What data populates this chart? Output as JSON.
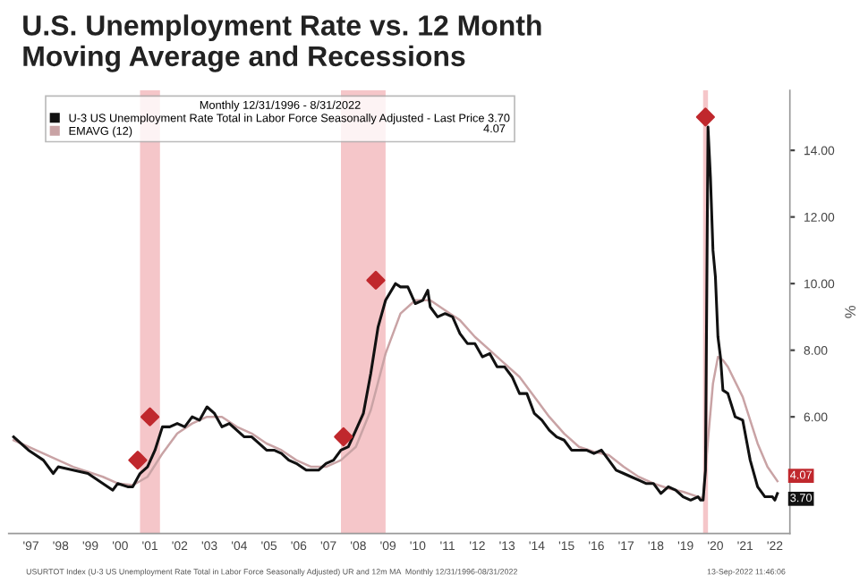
{
  "chart_data": {
    "type": "line",
    "title": "U.S. Unemployment Rate vs. 12 Month\nMoving Average and Recessions",
    "legend_title": "Monthly 12/31/1996 - 8/31/2022",
    "ylabel": "%",
    "annotations": [
      "USURTOT Index (U-3 US Unemployment Rate Total in Labor Force Seasonally Adjusted) UR and 12m MA  Monthly 12/31/1996-08/31/2022",
      "13-Sep-2022 11:46:06",
      "4.07",
      {
        "text": "4.07",
        "x": "2022-08",
        "y": 4.07
      },
      {
        "text": "3.70",
        "x": "2022-08",
        "y": 3.7
      }
    ],
    "series": [
      {
        "name": "U-3 US Unemployment Rate Total in Labor Force Seasonally Adjusted - Last Price 3.70",
        "color": "#111111",
        "x": [
          "1996-12",
          "1997-06",
          "1997-12",
          "1998-04",
          "1998-06",
          "1998-12",
          "1999-06",
          "1999-12",
          "2000-04",
          "2000-06",
          "2000-10",
          "2000-12",
          "2001-03",
          "2001-06",
          "2001-09",
          "2001-12",
          "2002-03",
          "2002-06",
          "2002-09",
          "2002-12",
          "2003-03",
          "2003-06",
          "2003-09",
          "2003-12",
          "2004-03",
          "2004-06",
          "2004-09",
          "2004-12",
          "2005-03",
          "2005-06",
          "2005-09",
          "2005-12",
          "2006-03",
          "2006-06",
          "2006-10",
          "2006-12",
          "2007-03",
          "2007-06",
          "2007-09",
          "2007-12",
          "2008-03",
          "2008-06",
          "2008-09",
          "2008-12",
          "2009-03",
          "2009-06",
          "2009-10",
          "2009-12",
          "2010-03",
          "2010-06",
          "2010-09",
          "2010-11",
          "2010-12",
          "2011-03",
          "2011-06",
          "2011-09",
          "2011-12",
          "2012-03",
          "2012-06",
          "2012-09",
          "2012-12",
          "2013-03",
          "2013-06",
          "2013-09",
          "2013-12",
          "2014-03",
          "2014-06",
          "2014-09",
          "2014-12",
          "2015-03",
          "2015-06",
          "2015-09",
          "2015-12",
          "2016-03",
          "2016-06",
          "2016-09",
          "2016-12",
          "2017-03",
          "2017-06",
          "2017-09",
          "2017-12",
          "2018-03",
          "2018-06",
          "2018-09",
          "2018-12",
          "2019-03",
          "2019-06",
          "2019-09",
          "2019-12",
          "2020-01",
          "2020-02",
          "2020-03",
          "2020-04",
          "2020-05",
          "2020-06",
          "2020-07",
          "2020-08",
          "2020-09",
          "2020-10",
          "2020-12",
          "2021-03",
          "2021-06",
          "2021-09",
          "2021-12",
          "2022-03",
          "2022-06",
          "2022-07",
          "2022-08"
        ],
        "values": [
          5.4,
          5.0,
          4.7,
          4.3,
          4.5,
          4.4,
          4.3,
          4.0,
          3.8,
          4.0,
          3.9,
          3.9,
          4.3,
          4.5,
          5.0,
          5.7,
          5.7,
          5.8,
          5.7,
          6.0,
          5.9,
          6.3,
          6.1,
          5.7,
          5.8,
          5.6,
          5.4,
          5.4,
          5.2,
          5.0,
          5.0,
          4.9,
          4.7,
          4.6,
          4.4,
          4.4,
          4.4,
          4.6,
          4.7,
          5.0,
          5.1,
          5.6,
          6.1,
          7.3,
          8.7,
          9.5,
          10.0,
          9.9,
          9.9,
          9.4,
          9.5,
          9.8,
          9.3,
          9.0,
          9.1,
          9.0,
          8.5,
          8.2,
          8.2,
          7.8,
          7.9,
          7.5,
          7.5,
          7.2,
          6.7,
          6.7,
          6.1,
          5.9,
          5.6,
          5.4,
          5.3,
          5.0,
          5.0,
          5.0,
          4.9,
          5.0,
          4.7,
          4.4,
          4.3,
          4.2,
          4.1,
          4.0,
          4.0,
          3.7,
          3.9,
          3.8,
          3.6,
          3.5,
          3.6,
          3.5,
          3.5,
          4.4,
          14.7,
          13.2,
          11.0,
          10.2,
          8.4,
          7.8,
          6.8,
          6.7,
          6.0,
          5.9,
          4.7,
          3.9,
          3.6,
          3.6,
          3.5,
          3.7
        ]
      },
      {
        "name": "EMAVG (12)",
        "color": "#c9a3a5",
        "x": [
          "1996-12",
          "1997-12",
          "1998-12",
          "1999-12",
          "2000-06",
          "2000-12",
          "2001-06",
          "2001-12",
          "2002-06",
          "2002-12",
          "2003-06",
          "2003-12",
          "2004-06",
          "2004-12",
          "2005-06",
          "2005-12",
          "2006-06",
          "2006-12",
          "2007-06",
          "2007-12",
          "2008-06",
          "2008-12",
          "2009-06",
          "2009-12",
          "2010-06",
          "2010-12",
          "2011-06",
          "2011-12",
          "2012-06",
          "2012-12",
          "2013-06",
          "2013-12",
          "2014-06",
          "2014-12",
          "2015-06",
          "2015-12",
          "2016-06",
          "2016-12",
          "2017-06",
          "2017-12",
          "2018-06",
          "2018-12",
          "2019-06",
          "2019-12",
          "2020-02",
          "2020-04",
          "2020-06",
          "2020-08",
          "2020-10",
          "2020-12",
          "2021-06",
          "2021-12",
          "2022-04",
          "2022-08"
        ],
        "values": [
          5.3,
          4.9,
          4.5,
          4.2,
          4.0,
          3.95,
          4.2,
          4.9,
          5.5,
          5.8,
          6.0,
          6.0,
          5.7,
          5.5,
          5.2,
          5.0,
          4.7,
          4.5,
          4.5,
          4.7,
          5.1,
          6.2,
          7.9,
          9.1,
          9.5,
          9.5,
          9.2,
          8.9,
          8.4,
          8.0,
          7.6,
          7.2,
          6.6,
          6.0,
          5.5,
          5.1,
          4.95,
          4.85,
          4.5,
          4.2,
          4.0,
          3.85,
          3.75,
          3.6,
          3.55,
          5.3,
          7.0,
          7.8,
          7.7,
          7.5,
          6.6,
          5.2,
          4.5,
          4.07
        ]
      },
      {
        "color": "#c0282d",
        "type": "scatter",
        "marker": "diamond",
        "x": [
          "2001-02",
          "2001-07",
          "2008-01",
          "2009-02",
          "2020-03"
        ],
        "values": [
          4.7,
          6.0,
          5.4,
          10.1,
          15.0
        ]
      }
    ],
    "bands": [
      {
        "axis": "x",
        "from": "2001-03",
        "to": "2001-11",
        "color": "#f2b3b7"
      },
      {
        "axis": "x",
        "from": "2007-12",
        "to": "2009-06",
        "color": "#f2b3b7"
      },
      {
        "axis": "x",
        "from": "2020-02",
        "to": "2020-04",
        "color": "#f2b3b7"
      }
    ],
    "xlim": [
      "1996-10",
      "2023-01"
    ],
    "xticks": [
      {
        "value": "1997-07",
        "label": "'97"
      },
      {
        "value": "1998-07",
        "label": "'98"
      },
      {
        "value": "1999-07",
        "label": "'99"
      },
      {
        "value": "2000-07",
        "label": "'00"
      },
      {
        "value": "2001-07",
        "label": "'01"
      },
      {
        "value": "2002-07",
        "label": "'02"
      },
      {
        "value": "2003-07",
        "label": "'03"
      },
      {
        "value": "2004-07",
        "label": "'04"
      },
      {
        "value": "2005-07",
        "label": "'05"
      },
      {
        "value": "2006-07",
        "label": "'06"
      },
      {
        "value": "2007-07",
        "label": "'07"
      },
      {
        "value": "2008-07",
        "label": "'08"
      },
      {
        "value": "2009-07",
        "label": "'09"
      },
      {
        "value": "2010-07",
        "label": "'10"
      },
      {
        "value": "2011-07",
        "label": "'11"
      },
      {
        "value": "2012-07",
        "label": "'12"
      },
      {
        "value": "2013-07",
        "label": "'13"
      },
      {
        "value": "2014-07",
        "label": "'14"
      },
      {
        "value": "2015-07",
        "label": "'15"
      },
      {
        "value": "2016-07",
        "label": "'16"
      },
      {
        "value": "2017-07",
        "label": "'17"
      },
      {
        "value": "2018-07",
        "label": "'18"
      },
      {
        "value": "2019-07",
        "label": "'19"
      },
      {
        "value": "2020-07",
        "label": "'20"
      },
      {
        "value": "2021-07",
        "label": "'21"
      },
      {
        "value": "2022-07",
        "label": "'22"
      }
    ],
    "ylim": [
      2.5,
      15.8
    ],
    "yticks": [
      {
        "value": 6,
        "label": "6.00"
      },
      {
        "value": 8,
        "label": "8.00"
      },
      {
        "value": 10,
        "label": "10.00"
      },
      {
        "value": 12,
        "label": "12.00"
      },
      {
        "value": 14,
        "label": "14.00"
      }
    ],
    "grid": false,
    "legend": "top left"
  }
}
